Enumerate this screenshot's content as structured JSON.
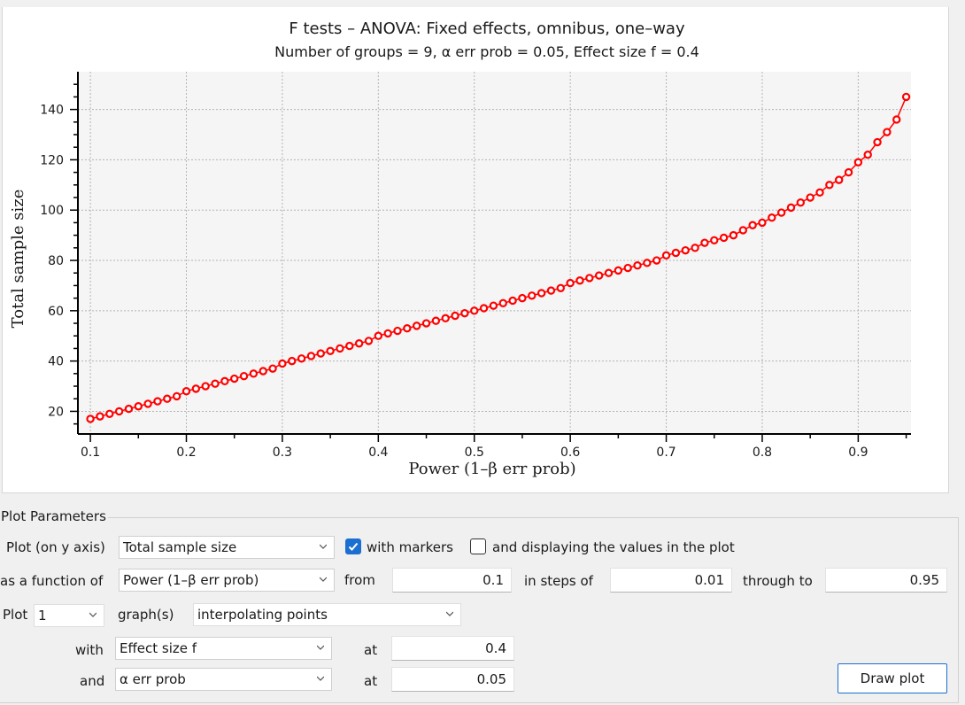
{
  "plot": {
    "title": "F tests – ANOVA: Fixed effects, omnibus, one–way",
    "subtitle": "Number of groups = 9, α err prob = 0.05, Effect size f = 0.4"
  },
  "chart_data": {
    "type": "scatter",
    "title": "F tests – ANOVA: Fixed effects, omnibus, one–way",
    "subtitle": "Number of groups = 9, α err prob = 0.05, Effect size f = 0.4",
    "xlabel": "Power (1–β err prob)",
    "ylabel": "Total sample size",
    "xlim": [
      0.087,
      0.955
    ],
    "ylim": [
      11,
      155
    ],
    "xticks": [
      0.1,
      0.2,
      0.3,
      0.4,
      0.5,
      0.6,
      0.7,
      0.8,
      0.9
    ],
    "xtick_labels": [
      "0.1",
      "0.2",
      "0.3",
      "0.4",
      "0.5",
      "0.6",
      "0.7",
      "0.8",
      "0.9"
    ],
    "yticks": [
      20,
      40,
      60,
      80,
      100,
      120,
      140
    ],
    "ytick_labels": [
      "20",
      "40",
      "60",
      "80",
      "100",
      "120",
      "140"
    ],
    "grid": true,
    "markers": "open-circle",
    "series_color": "#ff0000",
    "series": [
      {
        "x": [
          0.1,
          0.11,
          0.12,
          0.13,
          0.14,
          0.15,
          0.16,
          0.17,
          0.18,
          0.19,
          0.2,
          0.21,
          0.22,
          0.23,
          0.24,
          0.25,
          0.26,
          0.27,
          0.28,
          0.29,
          0.3,
          0.31,
          0.32,
          0.33,
          0.34,
          0.35,
          0.36,
          0.37,
          0.38,
          0.39,
          0.4,
          0.41,
          0.42,
          0.43,
          0.44,
          0.45,
          0.46,
          0.47,
          0.48,
          0.49,
          0.5,
          0.51,
          0.52,
          0.53,
          0.54,
          0.55,
          0.56,
          0.57,
          0.58,
          0.59,
          0.6,
          0.61,
          0.62,
          0.63,
          0.64,
          0.65,
          0.66,
          0.67,
          0.68,
          0.69,
          0.7,
          0.71,
          0.72,
          0.73,
          0.74,
          0.75,
          0.76,
          0.77,
          0.78,
          0.79,
          0.8,
          0.81,
          0.82,
          0.83,
          0.84,
          0.85,
          0.86,
          0.87,
          0.88,
          0.89,
          0.9,
          0.91,
          0.92,
          0.93,
          0.94,
          0.95
        ],
        "y": [
          17,
          18,
          19,
          20,
          21,
          22,
          23,
          24,
          25,
          26,
          28,
          29,
          30,
          31,
          32,
          33,
          34,
          35,
          36,
          37,
          39,
          40,
          41,
          42,
          43,
          44,
          45,
          46,
          47,
          48,
          50,
          51,
          52,
          53,
          54,
          55,
          56,
          57,
          58,
          59,
          60,
          61,
          62,
          63,
          64,
          65,
          66,
          67,
          68,
          69,
          71,
          72,
          73,
          74,
          75,
          76,
          77,
          78,
          79,
          80,
          82,
          83,
          84,
          85,
          87,
          88,
          89,
          90,
          92,
          94,
          95,
          97,
          99,
          101,
          103,
          105,
          107,
          110,
          112,
          115,
          119,
          122,
          127,
          131,
          136,
          145
        ]
      }
    ]
  },
  "params": {
    "legend": "Plot Parameters",
    "row1": {
      "label": "Plot (on y axis)",
      "y_select": "Total sample size",
      "with_markers": "with markers",
      "with_markers_checked": true,
      "display_values": "and displaying the values in the plot",
      "display_values_checked": false
    },
    "row2": {
      "label": "as a function of",
      "x_select": "Power (1–β err prob)",
      "from_label": "from",
      "from_value": "0.1",
      "steps_label": "in steps of",
      "steps_value": "0.01",
      "through_label": "through to",
      "through_value": "0.95"
    },
    "row3": {
      "label": "Plot",
      "count": "1",
      "graphs_label": "graph(s)",
      "mode": "interpolating points"
    },
    "row4": {
      "label": "with",
      "select": "Effect size f",
      "at_label": "at",
      "value": "0.4"
    },
    "row5": {
      "label": "and",
      "select": "α err prob",
      "at_label": "at",
      "value": "0.05"
    },
    "draw_button": "Draw plot"
  },
  "colors": {
    "accent": "#1a6fd1",
    "series": "#ff0000",
    "plot_area": "#f5f5f5"
  }
}
